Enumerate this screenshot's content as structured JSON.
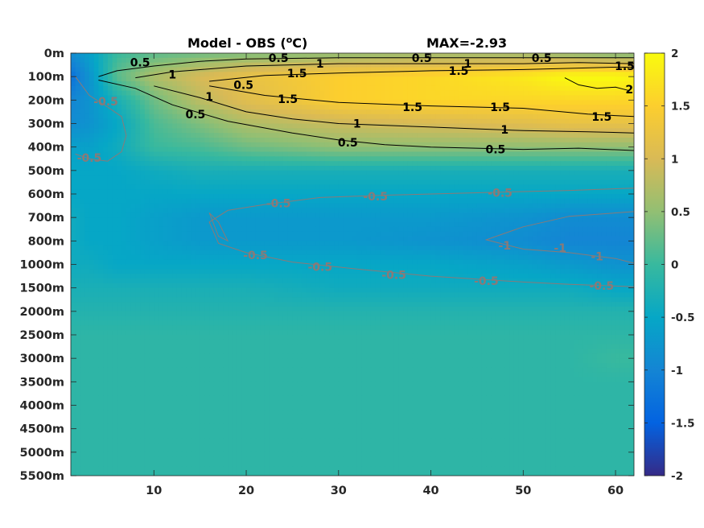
{
  "chart_data": {
    "type": "heatmap",
    "title": "Model - OBS (°C)",
    "title_parts": {
      "left": "Model - OBS (",
      "sup": "o",
      "right": "C)"
    },
    "max_label": "MAX=-2.93",
    "x": {
      "lim": [
        1,
        62
      ],
      "ticks": [
        10,
        20,
        30,
        40,
        50,
        60
      ]
    },
    "y": {
      "type": "category",
      "tick_labels": [
        "0m",
        "100m",
        "200m",
        "300m",
        "400m",
        "500m",
        "600m",
        "700m",
        "800m",
        "1000m",
        "1500m",
        "2000m",
        "2500m",
        "3000m",
        "3500m",
        "4000m",
        "4500m",
        "5000m",
        "5500m"
      ]
    },
    "colorbar": {
      "range": [
        -2,
        2
      ],
      "ticks": [
        2,
        1.5,
        1,
        0.5,
        0,
        -0.5,
        -1,
        -1.5,
        -2
      ],
      "tick_labels": [
        "2",
        "1.5",
        "1",
        "0.5",
        "0",
        "-0.5",
        "-1",
        "-1.5",
        "-2"
      ],
      "colormap": "parula",
      "colors": [
        "#352a87",
        "#0363e1",
        "#1485d4",
        "#06a7c6",
        "#38b99e",
        "#92bf73",
        "#d9ba56",
        "#fcce2e",
        "#f9fb0e"
      ]
    },
    "field_approx": {
      "note_rows": "value by depth level (rows) and x (cols 1..62, sampled)",
      "x_samples": [
        1,
        3,
        6,
        10,
        15,
        20,
        30,
        40,
        50,
        55,
        60,
        62
      ],
      "levels": {
        "0m": [
          -0.9,
          -0.6,
          0.0,
          0.2,
          0.3,
          0.4,
          0.5,
          0.6,
          0.6,
          0.5,
          0.4,
          0.4
        ],
        "100m": [
          -1.3,
          -0.8,
          0.2,
          0.7,
          1.0,
          1.2,
          1.5,
          1.6,
          1.8,
          2.0,
          2.0,
          1.9
        ],
        "200m": [
          -1.0,
          -0.8,
          -0.3,
          0.3,
          0.8,
          1.1,
          1.5,
          1.6,
          1.6,
          1.6,
          1.6,
          1.6
        ],
        "300m": [
          -0.9,
          -0.8,
          -0.5,
          0.1,
          0.4,
          0.7,
          0.9,
          1.0,
          1.1,
          1.2,
          1.2,
          1.2
        ],
        "400m": [
          -0.6,
          -0.6,
          -0.4,
          0.0,
          0.1,
          0.3,
          0.5,
          0.5,
          0.5,
          0.5,
          0.5,
          0.5
        ],
        "500m": [
          -0.5,
          -0.5,
          -0.5,
          -0.4,
          -0.3,
          -0.3,
          -0.3,
          -0.3,
          -0.3,
          -0.3,
          -0.3,
          -0.3
        ],
        "600m": [
          -0.5,
          -0.5,
          -0.5,
          -0.5,
          -0.5,
          -0.5,
          -0.5,
          -0.5,
          -0.5,
          -0.5,
          -0.5,
          -0.5
        ],
        "700m": [
          -0.4,
          -0.5,
          -0.5,
          -0.6,
          -0.7,
          -0.7,
          -0.7,
          -0.7,
          -0.8,
          -0.9,
          -0.9,
          -0.9
        ],
        "800m": [
          -0.4,
          -0.5,
          -0.5,
          -0.6,
          -0.7,
          -0.7,
          -0.7,
          -0.8,
          -0.9,
          -1.0,
          -1.0,
          -1.0
        ],
        "1000m": [
          -0.4,
          -0.4,
          -0.5,
          -0.5,
          -0.5,
          -0.5,
          -0.5,
          -0.5,
          -0.6,
          -0.7,
          -0.8,
          -0.8
        ],
        "1500m": [
          -0.3,
          -0.3,
          -0.3,
          -0.3,
          -0.3,
          -0.3,
          -0.4,
          -0.4,
          -0.4,
          -0.4,
          -0.5,
          -0.5
        ],
        "2000m": [
          -0.2,
          -0.2,
          -0.2,
          -0.2,
          -0.2,
          -0.2,
          -0.2,
          -0.2,
          -0.2,
          -0.2,
          -0.2,
          -0.2
        ],
        "2500m": [
          -0.1,
          -0.1,
          -0.1,
          -0.1,
          -0.1,
          -0.1,
          -0.1,
          -0.1,
          -0.1,
          -0.1,
          -0.1,
          -0.1
        ],
        "3000m": [
          -0.1,
          -0.1,
          -0.1,
          -0.1,
          -0.1,
          -0.1,
          -0.1,
          -0.1,
          -0.1,
          -0.1,
          0.0,
          0.0
        ],
        "3500m": [
          -0.1,
          -0.1,
          -0.1,
          -0.1,
          -0.1,
          -0.1,
          -0.1,
          -0.1,
          -0.1,
          -0.1,
          -0.1,
          -0.1
        ],
        "4000m": [
          -0.1,
          -0.1,
          -0.1,
          -0.1,
          -0.1,
          -0.1,
          -0.1,
          -0.1,
          -0.1,
          -0.1,
          -0.1,
          -0.1
        ],
        "4500m": [
          -0.1,
          -0.1,
          -0.1,
          -0.1,
          -0.1,
          -0.1,
          -0.1,
          -0.1,
          -0.1,
          -0.1,
          -0.1,
          -0.1
        ],
        "5000m": [
          -0.1,
          -0.1,
          -0.1,
          -0.1,
          -0.1,
          -0.1,
          -0.1,
          -0.1,
          -0.1,
          -0.1,
          -0.1,
          -0.1
        ],
        "5500m": [
          -0.1,
          -0.1,
          -0.1,
          -0.1,
          -0.1,
          -0.1,
          -0.1,
          -0.1,
          -0.1,
          -0.1,
          -0.1,
          -0.1
        ]
      }
    },
    "contour_labels": [
      {
        "text": "0.5",
        "color": "black",
        "x": 8.5,
        "level": 0.4
      },
      {
        "text": "1",
        "color": "black",
        "x": 12,
        "level": 0.9
      },
      {
        "text": "0.5",
        "color": "black",
        "x": 23.5,
        "level": 0.2
      },
      {
        "text": "1.5",
        "color": "black",
        "x": 25.5,
        "level": 0.85
      },
      {
        "text": "1",
        "color": "black",
        "x": 28,
        "level": 0.45
      },
      {
        "text": "1",
        "color": "black",
        "x": 16,
        "level": 1.85
      },
      {
        "text": "0.5",
        "color": "black",
        "x": 14.5,
        "level": 2.6
      },
      {
        "text": "1.5",
        "color": "black",
        "x": 24.5,
        "level": 1.95
      },
      {
        "text": "1",
        "color": "black",
        "x": 32,
        "level": 3.0
      },
      {
        "text": "0.5",
        "color": "black",
        "x": 31,
        "level": 3.8
      },
      {
        "text": "1.5",
        "color": "black",
        "x": 38,
        "level": 2.3
      },
      {
        "text": "0.5",
        "color": "black",
        "x": 39,
        "level": 0.2
      },
      {
        "text": "1",
        "color": "black",
        "x": 44,
        "level": 0.45
      },
      {
        "text": "1.5",
        "color": "black",
        "x": 43,
        "level": 0.75
      },
      {
        "text": "1.5",
        "color": "black",
        "x": 47.5,
        "level": 2.3
      },
      {
        "text": "1",
        "color": "black",
        "x": 48,
        "level": 3.25
      },
      {
        "text": "0.5",
        "color": "black",
        "x": 47,
        "level": 4.1
      },
      {
        "text": "0.5",
        "color": "black",
        "x": 52,
        "level": 0.2
      },
      {
        "text": "1.5",
        "color": "black",
        "x": 58.5,
        "level": 2.7
      },
      {
        "text": "1.5",
        "color": "black",
        "x": 61,
        "level": 0.55
      },
      {
        "text": "2",
        "color": "black",
        "x": 61.5,
        "level": 1.55
      },
      {
        "text": "0.5",
        "color": "black",
        "x": 19.7,
        "level": 1.35
      },
      {
        "text": "-0.5",
        "color": "gray",
        "x": 4.8,
        "level": 2.05
      },
      {
        "text": "-0.5",
        "color": "gray",
        "x": 3,
        "level": 4.45
      },
      {
        "text": "-0.5",
        "color": "gray",
        "x": 23.5,
        "level": 6.4
      },
      {
        "text": "-0.5",
        "color": "gray",
        "x": 34,
        "level": 6.1
      },
      {
        "text": "-0.5",
        "color": "gray",
        "x": 47.5,
        "level": 5.95
      },
      {
        "text": "-0.5",
        "color": "gray",
        "x": 21,
        "level": 8.6
      },
      {
        "text": "-0.5",
        "color": "gray",
        "x": 28,
        "level": 9.1
      },
      {
        "text": "-0.5",
        "color": "gray",
        "x": 36,
        "level": 9.45
      },
      {
        "text": "-0.5",
        "color": "gray",
        "x": 46,
        "level": 9.7
      },
      {
        "text": "-0.5",
        "color": "gray",
        "x": 58.5,
        "level": 9.9
      },
      {
        "text": "-1",
        "color": "gray",
        "x": 48,
        "level": 8.2
      },
      {
        "text": "-1",
        "color": "gray",
        "x": 54,
        "level": 8.3
      },
      {
        "text": "-1",
        "color": "gray",
        "x": 58,
        "level": 8.65
      }
    ],
    "contour_lines": [
      {
        "level_value": 0.5,
        "color": "black",
        "points": [
          [
            4,
            1.0
          ],
          [
            6,
            0.75
          ],
          [
            10,
            0.55
          ],
          [
            15,
            0.35
          ],
          [
            20,
            0.25
          ],
          [
            30,
            0.2
          ],
          [
            40,
            0.2
          ],
          [
            50,
            0.2
          ],
          [
            56,
            0.2
          ],
          [
            62,
            0.2
          ]
        ]
      },
      {
        "level_value": 1.0,
        "color": "black",
        "points": [
          [
            8,
            1.05
          ],
          [
            12,
            0.8
          ],
          [
            20,
            0.55
          ],
          [
            30,
            0.45
          ],
          [
            40,
            0.45
          ],
          [
            50,
            0.45
          ],
          [
            56,
            0.4
          ],
          [
            62,
            0.45
          ]
        ]
      },
      {
        "level_value": 1.5,
        "color": "black",
        "points": [
          [
            16,
            1.2
          ],
          [
            22,
            0.95
          ],
          [
            30,
            0.85
          ],
          [
            40,
            0.75
          ],
          [
            50,
            0.7
          ],
          [
            60,
            0.6
          ],
          [
            62,
            0.6
          ]
        ]
      },
      {
        "level_value": 1.5,
        "color": "black",
        "points": [
          [
            16,
            1.4
          ],
          [
            22,
            1.8
          ],
          [
            30,
            2.1
          ],
          [
            40,
            2.25
          ],
          [
            50,
            2.35
          ],
          [
            57,
            2.6
          ],
          [
            62,
            2.7
          ]
        ]
      },
      {
        "level_value": 1.0,
        "color": "black",
        "points": [
          [
            10,
            1.4
          ],
          [
            15,
            1.9
          ],
          [
            20,
            2.5
          ],
          [
            25,
            2.8
          ],
          [
            30,
            3.0
          ],
          [
            40,
            3.15
          ],
          [
            50,
            3.3
          ],
          [
            57,
            3.35
          ],
          [
            62,
            3.4
          ]
        ]
      },
      {
        "level_value": 0.5,
        "color": "black",
        "points": [
          [
            4,
            1.15
          ],
          [
            8,
            1.5
          ],
          [
            12,
            2.2
          ],
          [
            18,
            2.9
          ],
          [
            25,
            3.4
          ],
          [
            30,
            3.7
          ],
          [
            35,
            3.9
          ],
          [
            40,
            4.0
          ],
          [
            50,
            4.1
          ],
          [
            56,
            4.05
          ],
          [
            62,
            4.15
          ]
        ]
      },
      {
        "level_value": 2.0,
        "color": "black",
        "points": [
          [
            54.5,
            1.05
          ],
          [
            56,
            1.35
          ],
          [
            58,
            1.5
          ],
          [
            60,
            1.45
          ],
          [
            61.5,
            1.6
          ]
        ]
      },
      {
        "level_value": -0.5,
        "color": "gray",
        "points": [
          [
            1.5,
            1.0
          ],
          [
            3,
            1.8
          ],
          [
            5,
            2.3
          ],
          [
            6.5,
            2.7
          ],
          [
            7,
            3.5
          ],
          [
            6.5,
            4.2
          ],
          [
            5,
            4.6
          ],
          [
            3,
            4.5
          ],
          [
            1.5,
            4.3
          ]
        ]
      },
      {
        "level_value": -0.5,
        "color": "gray",
        "points": [
          [
            62,
            5.75
          ],
          [
            55,
            5.85
          ],
          [
            45,
            5.95
          ],
          [
            35,
            6.05
          ],
          [
            28,
            6.15
          ],
          [
            22,
            6.45
          ],
          [
            18,
            6.7
          ],
          [
            16,
            7.2
          ],
          [
            17,
            8.1
          ],
          [
            20,
            8.5
          ],
          [
            25,
            8.9
          ],
          [
            32,
            9.2
          ],
          [
            40,
            9.5
          ],
          [
            50,
            9.75
          ],
          [
            55,
            9.85
          ],
          [
            62,
            9.95
          ]
        ]
      },
      {
        "level_value": -1.0,
        "color": "gray",
        "points": [
          [
            62,
            6.75
          ],
          [
            55,
            6.95
          ],
          [
            50,
            7.4
          ],
          [
            46,
            7.95
          ],
          [
            50,
            8.35
          ],
          [
            55,
            8.5
          ],
          [
            60,
            8.75
          ],
          [
            62,
            8.95
          ]
        ]
      },
      {
        "level_value": -1.0,
        "color": "gray",
        "points": [
          [
            16,
            6.8
          ],
          [
            16.5,
            7.3
          ],
          [
            17,
            7.8
          ],
          [
            18,
            8.0
          ],
          [
            17,
            7.2
          ],
          [
            16,
            6.8
          ]
        ]
      }
    ]
  }
}
